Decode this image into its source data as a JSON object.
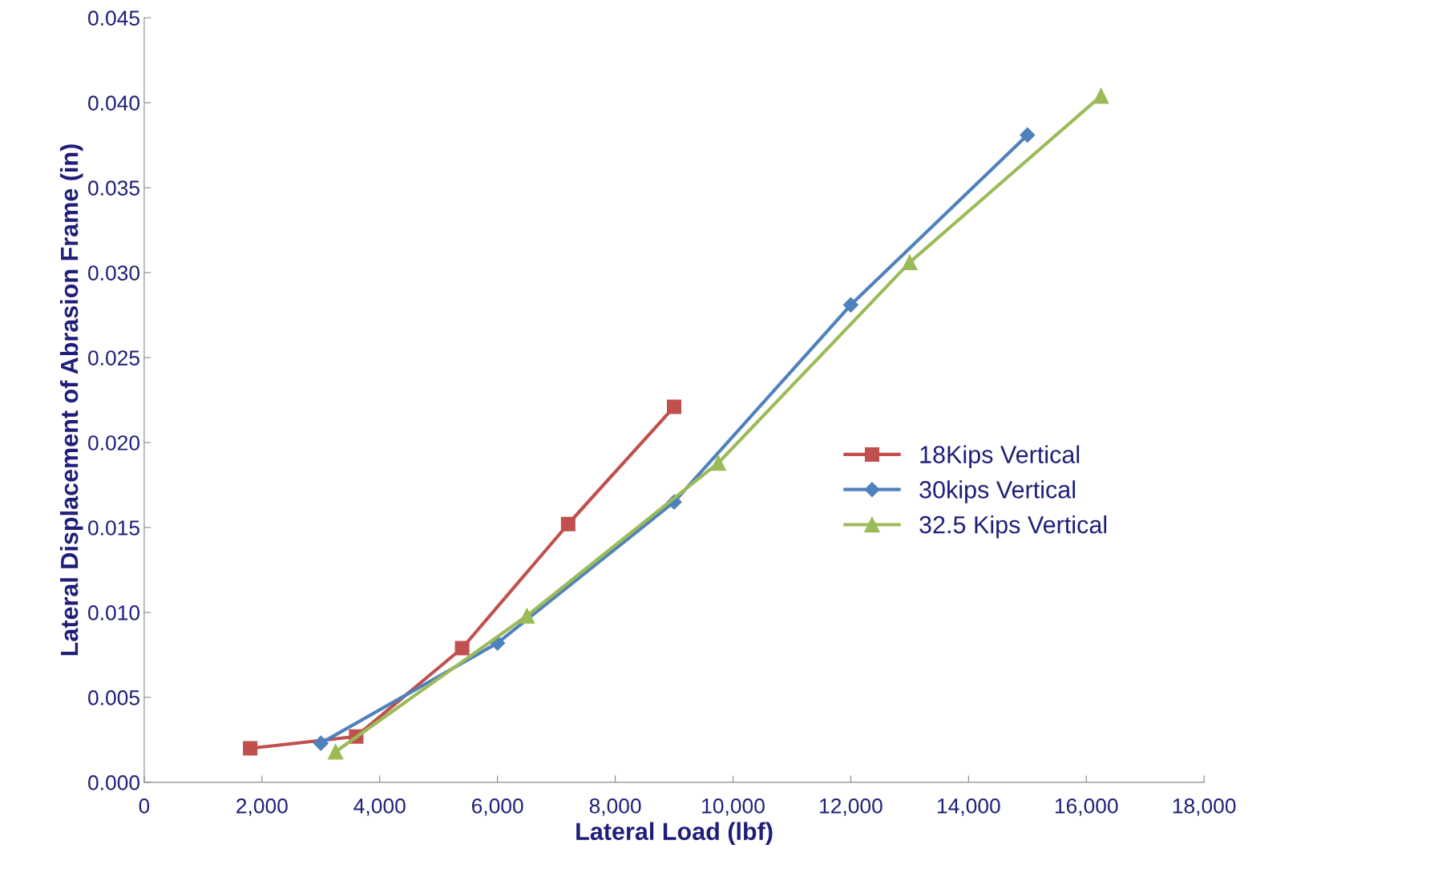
{
  "chart_data": {
    "type": "line",
    "xlabel": "Lateral Load (lbf)",
    "ylabel": "Lateral Displacement of Abrasion Frame (in)",
    "series": [
      {
        "name": "18Kips Vertical",
        "color": "#c0504d",
        "marker": "square",
        "x": [
          1800,
          3600,
          5400,
          7200,
          9000
        ],
        "values": [
          0.002,
          0.0027,
          0.0079,
          0.0152,
          0.0221
        ]
      },
      {
        "name": "30kips Vertical",
        "color": "#4f81bd",
        "marker": "diamond",
        "x": [
          3000,
          6000,
          9000,
          12000,
          15000
        ],
        "values": [
          0.0023,
          0.0082,
          0.0165,
          0.0281,
          0.0381
        ]
      },
      {
        "name": "32.5 Kips Vertical",
        "color": "#9bbb59",
        "marker": "triangle",
        "x": [
          3250,
          6500,
          9750,
          13000,
          16250
        ],
        "values": [
          0.0018,
          0.0098,
          0.0188,
          0.0306,
          0.0404
        ]
      }
    ],
    "xlim": [
      0,
      18000
    ],
    "xticks": [
      0,
      {
        "value": 2000,
        "label": "2,000"
      },
      {
        "value": 4000,
        "label": "4,000"
      },
      {
        "value": 6000,
        "label": "6,000"
      },
      {
        "value": 8000,
        "label": "8,000"
      },
      {
        "value": 10000,
        "label": "10,000"
      },
      {
        "value": 12000,
        "label": "12,000"
      },
      {
        "value": 14000,
        "label": "14,000"
      },
      {
        "value": 16000,
        "label": "16,000"
      },
      {
        "value": 18000,
        "label": "18,000"
      }
    ],
    "ylim": [
      0,
      0.045
    ],
    "yticks": [
      {
        "value": 0,
        "label": "0.000"
      },
      {
        "value": 0.005,
        "label": "0.005"
      },
      {
        "value": 0.01,
        "label": "0.010"
      },
      {
        "value": 0.015,
        "label": "0.015"
      },
      {
        "value": 0.02,
        "label": "0.020"
      },
      {
        "value": 0.025,
        "label": "0.025"
      },
      {
        "value": 0.03,
        "label": "0.030"
      },
      {
        "value": 0.035,
        "label": "0.035"
      },
      {
        "value": 0.04,
        "label": "0.040"
      },
      {
        "value": 0.045,
        "label": "0.045"
      }
    ],
    "grid": false,
    "legend": "right",
    "line_style": "solid"
  }
}
